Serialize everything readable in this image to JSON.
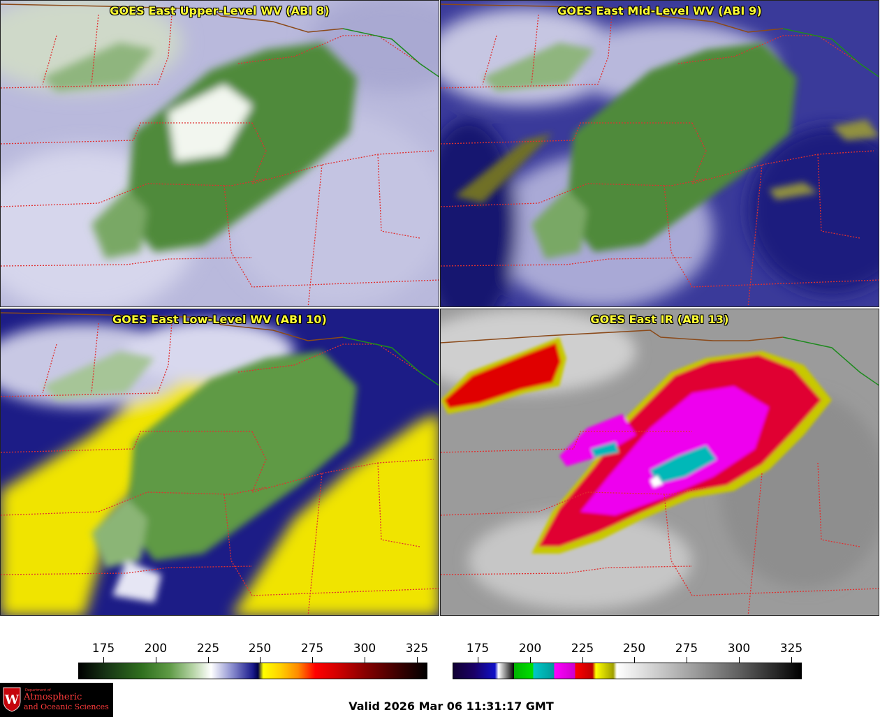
{
  "panels": {
    "upper": {
      "title": "GOES East Upper-Level WV (ABI 8)"
    },
    "mid": {
      "title": "GOES East Mid-Level WV (ABI 9)"
    },
    "low": {
      "title": "GOES East Low-Level WV (ABI 10)"
    },
    "ir": {
      "title": "GOES East IR (ABI 13)"
    }
  },
  "colorbars": {
    "wv": {
      "ticks": [
        "175",
        "200",
        "225",
        "250",
        "275",
        "300",
        "325"
      ]
    },
    "ir": {
      "ticks": [
        "175",
        "200",
        "225",
        "250",
        "275",
        "300",
        "325"
      ]
    }
  },
  "logo": {
    "dept": "Department of",
    "line1": "Atmospheric",
    "line2": "and Oceanic Sciences",
    "shield_letter": "W"
  },
  "valid_time": "Valid 2026 Mar 06 11:31:17 GMT",
  "colors": {
    "title_text": "#ffff33",
    "border_state": "#e03030",
    "border_country": "#8b4a1a",
    "border_canada": "#1e8a1e"
  }
}
